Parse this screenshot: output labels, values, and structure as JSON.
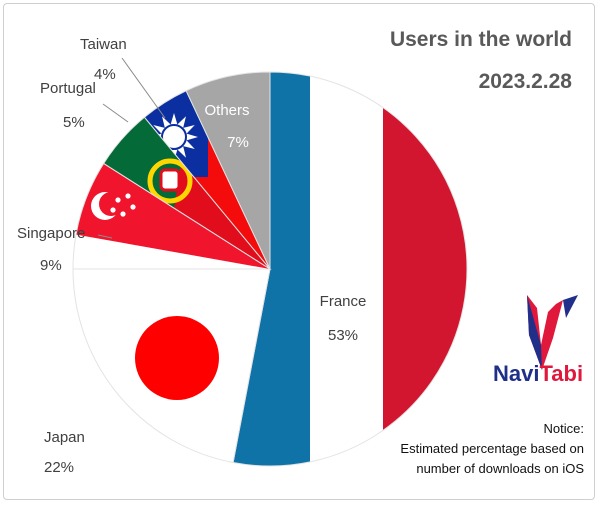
{
  "chart_data": {
    "type": "pie",
    "title": "Users in the world",
    "subtitle": "2023.2.28",
    "slices": [
      {
        "label": "France",
        "value": 53,
        "value_label": "53%"
      },
      {
        "label": "Japan",
        "value": 22,
        "value_label": "22%"
      },
      {
        "label": "Singapore",
        "value": 9,
        "value_label": "9%"
      },
      {
        "label": "Portugal",
        "value": 5,
        "value_label": "5%"
      },
      {
        "label": "Taiwan",
        "value": 4,
        "value_label": "4%"
      },
      {
        "label": "Others",
        "value": 7,
        "value_label": "7%"
      }
    ],
    "start": "12 o'clock",
    "direction": "clockwise"
  },
  "brand": {
    "part1": "Navi",
    "part2": "Tabi"
  },
  "notice": {
    "line1": "Notice:",
    "line2": "Estimated percentage based on",
    "line3": "number of downloads on iOS"
  },
  "colors": {
    "france_blue": "#0f73a8",
    "france_red": "#d3162f",
    "japan_red": "#ff0000",
    "singapore_red": "#f0142d",
    "portugal_green": "#046a38",
    "portugal_red": "#e10d1c",
    "taiwan_blue": "#0b2ea0",
    "taiwan_red": "#f40c0c",
    "others_gray": "#a6a6a6",
    "brand_navy": "#1f2f8a",
    "brand_red": "#e0183c"
  }
}
